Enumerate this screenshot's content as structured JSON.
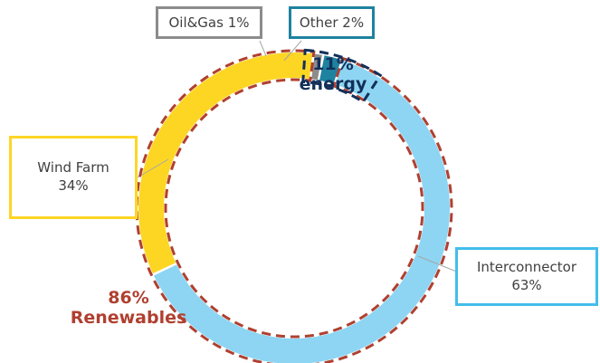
{
  "colors": {
    "interconnector": "#8DD5F2",
    "wind_farm": "#FDD624",
    "oil_gas": "#8C8C8C",
    "other": "#1E82A0",
    "renewables_outline": "#B04030",
    "energy_outline": "#12305A",
    "leader": "#A6A6A6"
  },
  "chart_data": {
    "type": "pie",
    "style": "donut",
    "slices": [
      {
        "label": "Interconnector",
        "value": 63,
        "value_text": "63%",
        "color": "#8DD5F2"
      },
      {
        "label": "Wind Farm",
        "value": 34,
        "value_text": "34%",
        "color": "#FDD624"
      },
      {
        "label": "Oil&Gas",
        "value": 1,
        "value_text": "1%",
        "color": "#8C8C8C"
      },
      {
        "label": "Other",
        "value": 2,
        "value_text": "2%",
        "color": "#1E82A0"
      }
    ],
    "annotations": [
      {
        "line1": "86%",
        "line2": "Renewables"
      },
      {
        "line1": "11%",
        "line2": "energy"
      }
    ]
  }
}
